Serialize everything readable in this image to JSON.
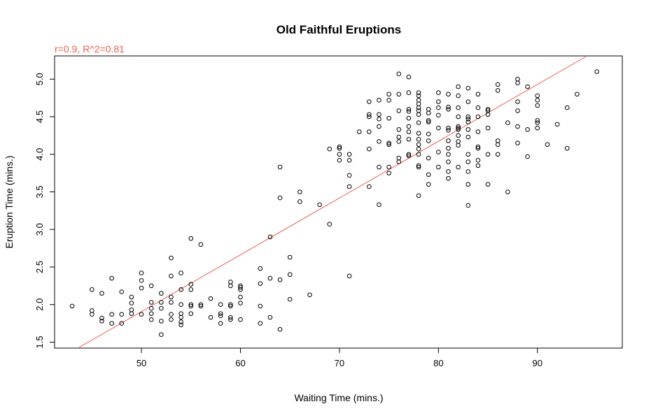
{
  "chart_data": {
    "type": "scatter",
    "title": "Old Faithful Eruptions",
    "xlabel": "Waiting Time (mins.)",
    "ylabel": "Eruption Time (mins.)",
    "annotation": "r=0.9, R^2=0.81",
    "annotation_color": "#e8604c",
    "fit_line_color": "#e8604c",
    "fit_line": {
      "intercept": -1.874,
      "slope": 0.0756
    },
    "xlim": [
      41.3,
      98.5
    ],
    "ylim": [
      1.43,
      5.3
    ],
    "xticks": [
      50,
      60,
      70,
      80,
      90
    ],
    "yticks": [
      1.5,
      2.0,
      2.5,
      3.0,
      3.5,
      4.0,
      4.5,
      5.0
    ],
    "ytick_labels": [
      "1.5",
      "2.0",
      "2.5",
      "3.0",
      "3.5",
      "4.0",
      "4.5",
      "5.0"
    ],
    "grid": false,
    "legend": "none",
    "points": [
      [
        43,
        1.98
      ],
      [
        45,
        1.87
      ],
      [
        45,
        1.92
      ],
      [
        45,
        2.2
      ],
      [
        46,
        1.78
      ],
      [
        46,
        1.82
      ],
      [
        46,
        2.15
      ],
      [
        47,
        1.75
      ],
      [
        47,
        1.87
      ],
      [
        47,
        2.35
      ],
      [
        48,
        1.75
      ],
      [
        48,
        1.87
      ],
      [
        48,
        2.17
      ],
      [
        49,
        1.88
      ],
      [
        49,
        1.93
      ],
      [
        49,
        2.02
      ],
      [
        49,
        2.1
      ],
      [
        50,
        1.87
      ],
      [
        50,
        2.22
      ],
      [
        50,
        2.32
      ],
      [
        50,
        2.42
      ],
      [
        51,
        1.8
      ],
      [
        51,
        1.88
      ],
      [
        51,
        1.95
      ],
      [
        51,
        2.03
      ],
      [
        51,
        2.25
      ],
      [
        52,
        1.6
      ],
      [
        52,
        1.78
      ],
      [
        52,
        1.95
      ],
      [
        52,
        2.03
      ],
      [
        52,
        2.15
      ],
      [
        53,
        1.8
      ],
      [
        53,
        1.87
      ],
      [
        53,
        2.03
      ],
      [
        53,
        2.1
      ],
      [
        53,
        2.38
      ],
      [
        53,
        2.62
      ],
      [
        54,
        1.73
      ],
      [
        54,
        1.77
      ],
      [
        54,
        1.83
      ],
      [
        54,
        1.88
      ],
      [
        54,
        2.0
      ],
      [
        54,
        2.2
      ],
      [
        54,
        2.42
      ],
      [
        55,
        1.88
      ],
      [
        55,
        1.98
      ],
      [
        55,
        2.0
      ],
      [
        55,
        2.2
      ],
      [
        55,
        2.27
      ],
      [
        55,
        2.88
      ],
      [
        56,
        1.98
      ],
      [
        56,
        2.0
      ],
      [
        56,
        2.8
      ],
      [
        57,
        1.83
      ],
      [
        57,
        2.08
      ],
      [
        58,
        1.75
      ],
      [
        58,
        1.85
      ],
      [
        58,
        1.88
      ],
      [
        58,
        2.0
      ],
      [
        59,
        1.8
      ],
      [
        59,
        1.83
      ],
      [
        59,
        1.98
      ],
      [
        59,
        2.0
      ],
      [
        59,
        2.25
      ],
      [
        59,
        2.3
      ],
      [
        60,
        1.8
      ],
      [
        60,
        2.02
      ],
      [
        60,
        2.1
      ],
      [
        60,
        2.2
      ],
      [
        60,
        2.23
      ],
      [
        60,
        2.25
      ],
      [
        62,
        1.75
      ],
      [
        62,
        1.98
      ],
      [
        62,
        2.28
      ],
      [
        62,
        2.48
      ],
      [
        63,
        1.83
      ],
      [
        63,
        2.35
      ],
      [
        63,
        2.9
      ],
      [
        64,
        1.67
      ],
      [
        64,
        2.33
      ],
      [
        64,
        3.42
      ],
      [
        64,
        3.83
      ],
      [
        65,
        2.07
      ],
      [
        65,
        2.4
      ],
      [
        65,
        2.63
      ],
      [
        66,
        3.37
      ],
      [
        66,
        3.5
      ],
      [
        67,
        2.13
      ],
      [
        68,
        3.33
      ],
      [
        69,
        3.07
      ],
      [
        69,
        4.07
      ],
      [
        70,
        3.92
      ],
      [
        70,
        4.0
      ],
      [
        70,
        4.08
      ],
      [
        70,
        4.1
      ],
      [
        71,
        2.38
      ],
      [
        71,
        3.57
      ],
      [
        71,
        3.72
      ],
      [
        71,
        3.92
      ],
      [
        71,
        4.0
      ],
      [
        72,
        4.3
      ],
      [
        73,
        3.57
      ],
      [
        73,
        4.07
      ],
      [
        73,
        4.3
      ],
      [
        73,
        4.5
      ],
      [
        73,
        4.53
      ],
      [
        73,
        4.7
      ],
      [
        74,
        3.33
      ],
      [
        74,
        3.83
      ],
      [
        74,
        4.17
      ],
      [
        74,
        4.37
      ],
      [
        74,
        4.47
      ],
      [
        74,
        4.53
      ],
      [
        74,
        4.72
      ],
      [
        75,
        3.75
      ],
      [
        75,
        3.83
      ],
      [
        75,
        4.13
      ],
      [
        75,
        4.15
      ],
      [
        75,
        4.48
      ],
      [
        75,
        4.72
      ],
      [
        75,
        4.8
      ],
      [
        76,
        3.9
      ],
      [
        76,
        3.95
      ],
      [
        76,
        4.17
      ],
      [
        76,
        4.23
      ],
      [
        76,
        4.33
      ],
      [
        76,
        4.58
      ],
      [
        76,
        4.8
      ],
      [
        76,
        5.07
      ],
      [
        77,
        3.98
      ],
      [
        77,
        4.0
      ],
      [
        77,
        4.2
      ],
      [
        77,
        4.3
      ],
      [
        77,
        4.37
      ],
      [
        77,
        4.48
      ],
      [
        77,
        4.57
      ],
      [
        77,
        4.6
      ],
      [
        77,
        4.82
      ],
      [
        77,
        5.03
      ],
      [
        78,
        3.45
      ],
      [
        78,
        3.83
      ],
      [
        78,
        3.85
      ],
      [
        78,
        4.0
      ],
      [
        78,
        4.07
      ],
      [
        78,
        4.13
      ],
      [
        78,
        4.2
      ],
      [
        78,
        4.28
      ],
      [
        78,
        4.42
      ],
      [
        78,
        4.53
      ],
      [
        78,
        4.58
      ],
      [
        78,
        4.62
      ],
      [
        78,
        4.67
      ],
      [
        78,
        4.72
      ],
      [
        78,
        4.78
      ],
      [
        78,
        4.82
      ],
      [
        79,
        3.6
      ],
      [
        79,
        3.73
      ],
      [
        79,
        3.95
      ],
      [
        79,
        4.18
      ],
      [
        79,
        4.27
      ],
      [
        79,
        4.43
      ],
      [
        79,
        4.45
      ],
      [
        79,
        4.55
      ],
      [
        79,
        4.6
      ],
      [
        80,
        3.83
      ],
      [
        80,
        4.03
      ],
      [
        80,
        4.35
      ],
      [
        80,
        4.52
      ],
      [
        80,
        4.62
      ],
      [
        80,
        4.7
      ],
      [
        80,
        4.82
      ],
      [
        81,
        3.68
      ],
      [
        81,
        3.77
      ],
      [
        81,
        3.9
      ],
      [
        81,
        4.0
      ],
      [
        81,
        4.08
      ],
      [
        81,
        4.18
      ],
      [
        81,
        4.32
      ],
      [
        81,
        4.35
      ],
      [
        81,
        4.6
      ],
      [
        81,
        4.63
      ],
      [
        81,
        4.8
      ],
      [
        82,
        3.83
      ],
      [
        82,
        4.12
      ],
      [
        82,
        4.17
      ],
      [
        82,
        4.25
      ],
      [
        82,
        4.33
      ],
      [
        82,
        4.35
      ],
      [
        82,
        4.37
      ],
      [
        82,
        4.5
      ],
      [
        82,
        4.62
      ],
      [
        82,
        4.78
      ],
      [
        82,
        4.9
      ],
      [
        83,
        3.32
      ],
      [
        83,
        3.6
      ],
      [
        83,
        3.77
      ],
      [
        83,
        3.9
      ],
      [
        83,
        4.0
      ],
      [
        83,
        4.23
      ],
      [
        83,
        4.33
      ],
      [
        83,
        4.43
      ],
      [
        83,
        4.47
      ],
      [
        83,
        4.5
      ],
      [
        83,
        4.7
      ],
      [
        83,
        4.88
      ],
      [
        84,
        3.85
      ],
      [
        84,
        3.92
      ],
      [
        84,
        4.08
      ],
      [
        84,
        4.1
      ],
      [
        84,
        4.3
      ],
      [
        84,
        4.5
      ],
      [
        84,
        4.62
      ],
      [
        84,
        4.8
      ],
      [
        85,
        3.6
      ],
      [
        85,
        4.0
      ],
      [
        85,
        4.35
      ],
      [
        85,
        4.53
      ],
      [
        85,
        4.58
      ],
      [
        85,
        4.6
      ],
      [
        86,
        4.0
      ],
      [
        86,
        4.13
      ],
      [
        86,
        4.18
      ],
      [
        86,
        4.85
      ],
      [
        86,
        4.93
      ],
      [
        87,
        3.5
      ],
      [
        87,
        4.42
      ],
      [
        88,
        4.15
      ],
      [
        88,
        4.37
      ],
      [
        88,
        4.58
      ],
      [
        88,
        4.7
      ],
      [
        88,
        4.95
      ],
      [
        88,
        5.0
      ],
      [
        89,
        3.97
      ],
      [
        89,
        4.33
      ],
      [
        89,
        4.9
      ],
      [
        90,
        4.35
      ],
      [
        90,
        4.42
      ],
      [
        90,
        4.45
      ],
      [
        90,
        4.65
      ],
      [
        90,
        4.72
      ],
      [
        90,
        4.78
      ],
      [
        91,
        4.13
      ],
      [
        92,
        4.4
      ],
      [
        93,
        4.08
      ],
      [
        93,
        4.62
      ],
      [
        94,
        4.8
      ],
      [
        96,
        5.1
      ]
    ]
  }
}
